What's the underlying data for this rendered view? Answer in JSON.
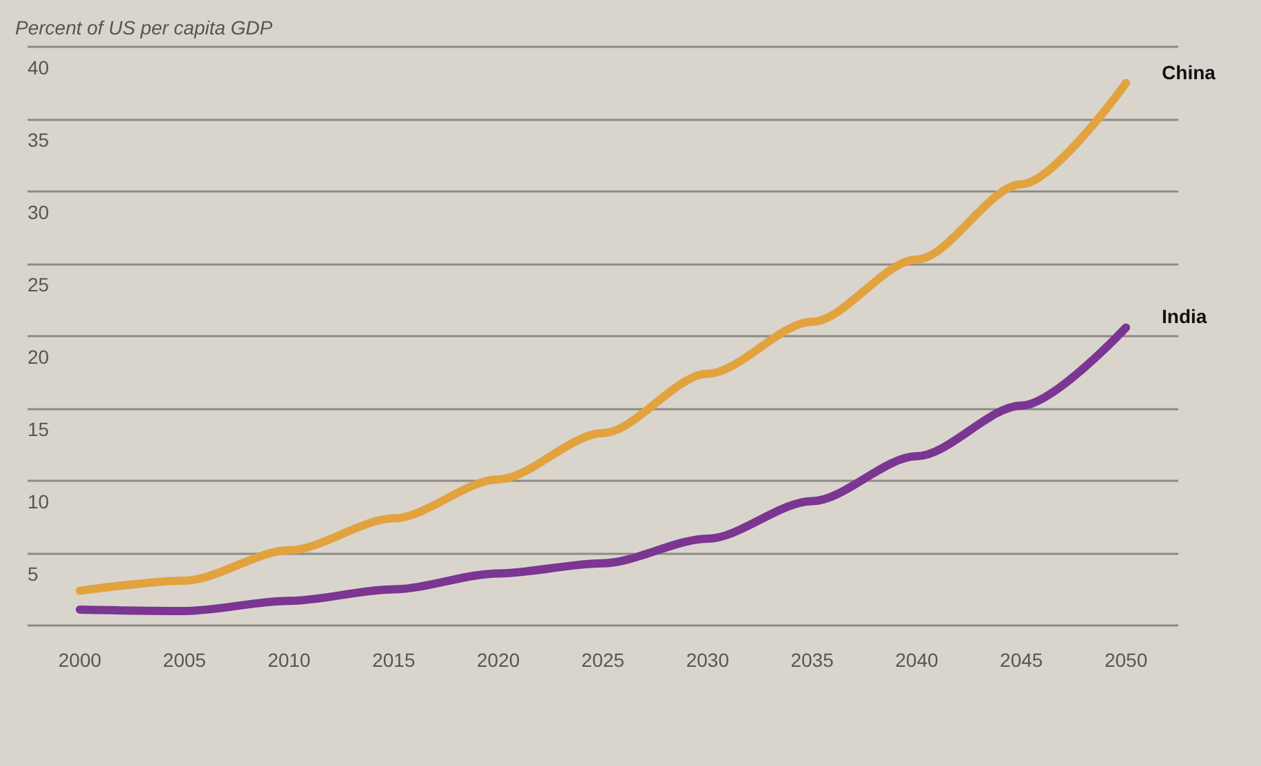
{
  "chart_data": {
    "type": "line",
    "ylabel": "Percent of US per capita GDP",
    "categories": [
      "2000",
      "2005",
      "2010",
      "2015",
      "2020",
      "2025",
      "2030",
      "2035",
      "2040",
      "2045",
      "2050"
    ],
    "series": [
      {
        "name": "China",
        "color": "#e2a33e",
        "values": [
          2.4,
          3.1,
          5.2,
          7.4,
          10.1,
          13.3,
          17.4,
          21,
          25.3,
          30.5,
          37.5
        ]
      },
      {
        "name": "India",
        "color": "#7b3592",
        "values": [
          1.1,
          1.0,
          1.7,
          2.5,
          3.6,
          4.3,
          6.0,
          8.6,
          11.7,
          15.2,
          20.6
        ]
      }
    ],
    "ylim": [
      0,
      40
    ],
    "yticks": [
      {
        "value": 0,
        "label": null
      },
      5,
      10,
      15,
      20,
      25,
      30,
      35,
      40
    ],
    "grid": "y",
    "legend": false,
    "marker": "none",
    "line_style": "solid"
  }
}
